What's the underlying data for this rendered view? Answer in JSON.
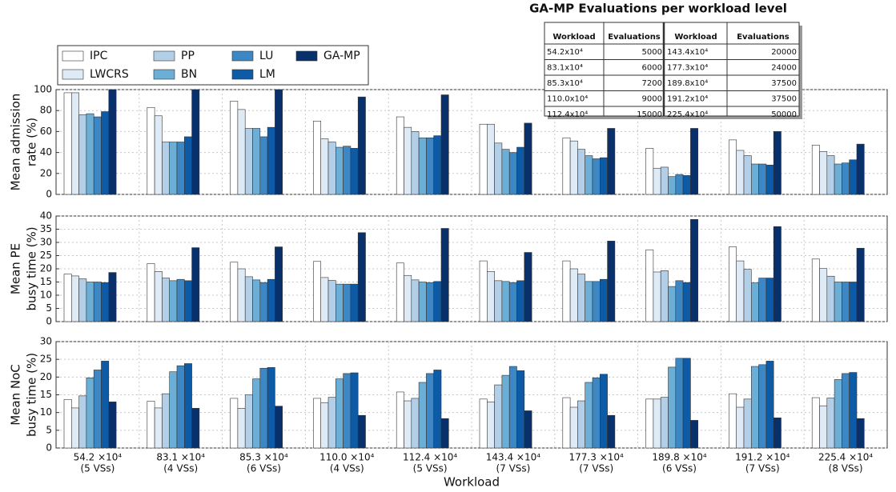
{
  "chart_data": [
    {
      "type": "bar",
      "ylabel": [
        "Mean admission",
        "rate (%)"
      ],
      "ylim": [
        0,
        100
      ],
      "yticks": [
        0,
        20,
        40,
        60,
        80,
        100
      ],
      "grid": true,
      "legend": "upper left",
      "series": [
        {
          "name": "IPC",
          "color": "#ffffff",
          "values": [
            97,
            83,
            89,
            70,
            74,
            67,
            54,
            44,
            52,
            47
          ]
        },
        {
          "name": "LWCRS",
          "color": "#deebf7",
          "values": [
            97,
            75,
            81,
            53,
            64,
            67,
            51,
            25,
            42,
            41
          ]
        },
        {
          "name": "PP",
          "color": "#b3cfe8",
          "values": [
            76,
            50,
            63,
            50,
            60,
            49,
            43,
            26,
            37,
            37
          ]
        },
        {
          "name": "BN",
          "color": "#6baed6",
          "values": [
            77,
            50,
            63,
            45,
            54,
            43,
            37,
            17,
            29,
            29
          ]
        },
        {
          "name": "LU",
          "color": "#3d88c4",
          "values": [
            74,
            50,
            55,
            46,
            54,
            40,
            34,
            19,
            29,
            30
          ]
        },
        {
          "name": "LM",
          "color": "#0d5aa6",
          "values": [
            79,
            55,
            64,
            44,
            56,
            45,
            35,
            18,
            28,
            33
          ]
        },
        {
          "name": "GA-MP",
          "color": "#08306b",
          "values": [
            100,
            100,
            100,
            93,
            95,
            68,
            63,
            63,
            60,
            48
          ]
        }
      ]
    },
    {
      "type": "bar",
      "ylabel": [
        "Mean PE",
        "busy time (%)"
      ],
      "ylim": [
        0,
        40
      ],
      "yticks": [
        0,
        5,
        10,
        15,
        20,
        25,
        30,
        35,
        40
      ],
      "grid": true,
      "series": [
        {
          "color": "#ffffff",
          "values": [
            18,
            22,
            22.5,
            22.8,
            22.2,
            23,
            23,
            27.2,
            28.3,
            23.7
          ]
        },
        {
          "color": "#deebf7",
          "values": [
            17.3,
            19,
            20,
            16.7,
            17.5,
            19,
            20,
            18.8,
            23,
            20.1
          ]
        },
        {
          "color": "#b3cfe8",
          "values": [
            16.2,
            16.5,
            17,
            15.6,
            15.8,
            15.5,
            18,
            19.3,
            19.8,
            17.2
          ]
        },
        {
          "color": "#6baed6",
          "values": [
            15,
            15.5,
            15.8,
            14.2,
            15,
            15.2,
            15.2,
            13.3,
            14.7,
            15
          ]
        },
        {
          "color": "#3d88c4",
          "values": [
            15,
            16,
            14.8,
            14.2,
            14.8,
            14.8,
            15.2,
            15.5,
            16.5,
            15
          ]
        },
        {
          "color": "#0d5aa6",
          "values": [
            14.8,
            15.5,
            16,
            14.2,
            15.2,
            15.5,
            16,
            14.8,
            16.5,
            15
          ]
        },
        {
          "color": "#08306b",
          "values": [
            18.6,
            28,
            28.3,
            33.7,
            35.3,
            26.2,
            30.5,
            38.7,
            36,
            27.8
          ]
        }
      ]
    },
    {
      "type": "bar",
      "ylabel": [
        "Mean NoC",
        "busy time (%)"
      ],
      "xlabel": "Workload",
      "ylim": [
        0,
        30
      ],
      "yticks": [
        0,
        5,
        10,
        15,
        20,
        25,
        30
      ],
      "grid": true,
      "categories": [
        "54.2 ×10⁴",
        "83.1 ×10⁴",
        "85.3 ×10⁴",
        "110.0 ×10⁴",
        "112.4 ×10⁴",
        "143.4 ×10⁴",
        "177.3 ×10⁴",
        "189.8 ×10⁴",
        "191.2 ×10⁴",
        "225.4 ×10⁴"
      ],
      "category_sublabels": [
        "(5 VSs)",
        "(4 VSs)",
        "(6 VSs)",
        "(4 VSs)",
        "(5 VSs)",
        "(7 VSs)",
        "(7 VSs)",
        "(6 VSs)",
        "(7 VSs)",
        "(8 VSs)"
      ],
      "series": [
        {
          "color": "#ffffff",
          "values": [
            13.7,
            13.2,
            14,
            14,
            15.8,
            13.8,
            14.2,
            13.8,
            15.3,
            14.2
          ]
        },
        {
          "color": "#deebf7",
          "values": [
            11.3,
            11.3,
            11.2,
            12.8,
            13.3,
            13,
            11.5,
            13.8,
            11.5,
            11.9
          ]
        },
        {
          "color": "#b3cfe8",
          "values": [
            14.7,
            15.3,
            15,
            14.3,
            14,
            17.8,
            13.3,
            14.3,
            13.8,
            14.1
          ]
        },
        {
          "color": "#6baed6",
          "values": [
            19.8,
            21.5,
            19.5,
            19.5,
            18.5,
            20.5,
            18.5,
            22.8,
            23,
            19.3
          ]
        },
        {
          "color": "#3d88c4",
          "values": [
            22,
            23.2,
            22.5,
            21,
            21,
            23,
            19.8,
            25.3,
            23.5,
            21
          ]
        },
        {
          "color": "#0d5aa6",
          "values": [
            24.5,
            23.8,
            22.7,
            21.2,
            22,
            21.8,
            20.8,
            25.3,
            24.5,
            21.3
          ]
        },
        {
          "color": "#08306b",
          "values": [
            13,
            11.2,
            11.8,
            9.2,
            8.3,
            10.5,
            9.2,
            7.8,
            8.5,
            8.3
          ]
        }
      ]
    }
  ],
  "table": {
    "title": "GA-MP Evaluations per workload level",
    "headers": [
      "Workload",
      "Evaluations",
      "Workload",
      "Evaluations"
    ],
    "rows": [
      [
        "54.2x10⁴",
        5000,
        "143.4x10⁴",
        20000
      ],
      [
        "83.1x10⁴",
        6000,
        "177.3x10⁴",
        24000
      ],
      [
        "85.3x10⁴",
        7200,
        "189.8x10⁴",
        37500
      ],
      [
        "110.0x10⁴",
        9000,
        "191.2x10⁴",
        37500
      ],
      [
        "112.4x10⁴",
        15000,
        "225.4x10⁴",
        50000
      ]
    ]
  }
}
